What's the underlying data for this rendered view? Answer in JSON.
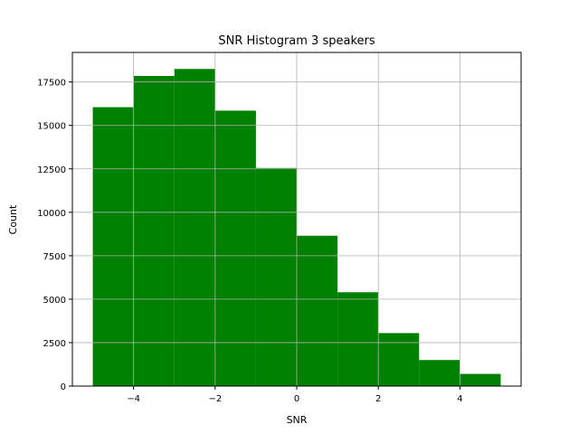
{
  "chart_data": {
    "type": "bar",
    "title": "SNR Histogram 3 speakers",
    "xlabel": "SNR",
    "ylabel": "Count",
    "bins": [
      {
        "start": -5,
        "end": -4,
        "value": 16050
      },
      {
        "start": -4,
        "end": -3,
        "value": 17850
      },
      {
        "start": -3,
        "end": -2,
        "value": 18250
      },
      {
        "start": -2,
        "end": -1,
        "value": 15850
      },
      {
        "start": -1,
        "end": 0,
        "value": 12550
      },
      {
        "start": 0,
        "end": 1,
        "value": 8650
      },
      {
        "start": 1,
        "end": 2,
        "value": 5400
      },
      {
        "start": 2,
        "end": 3,
        "value": 3050
      },
      {
        "start": 3,
        "end": 4,
        "value": 1500
      },
      {
        "start": 4,
        "end": 5,
        "value": 700
      }
    ],
    "xlim": [
      -5.5,
      5.5
    ],
    "ylim": [
      0,
      19200
    ],
    "xticks": [
      -4,
      -2,
      0,
      2,
      4
    ],
    "xtick_labels": [
      "−4",
      "−2",
      "0",
      "2",
      "4"
    ],
    "yticks": [
      0,
      2500,
      5000,
      7500,
      10000,
      12500,
      15000,
      17500
    ],
    "ytick_labels": [
      "0",
      "2500",
      "5000",
      "7500",
      "10000",
      "12500",
      "15000",
      "17500"
    ],
    "grid": true,
    "bar_color": "#008000",
    "grid_color": "#b0b0b0"
  }
}
